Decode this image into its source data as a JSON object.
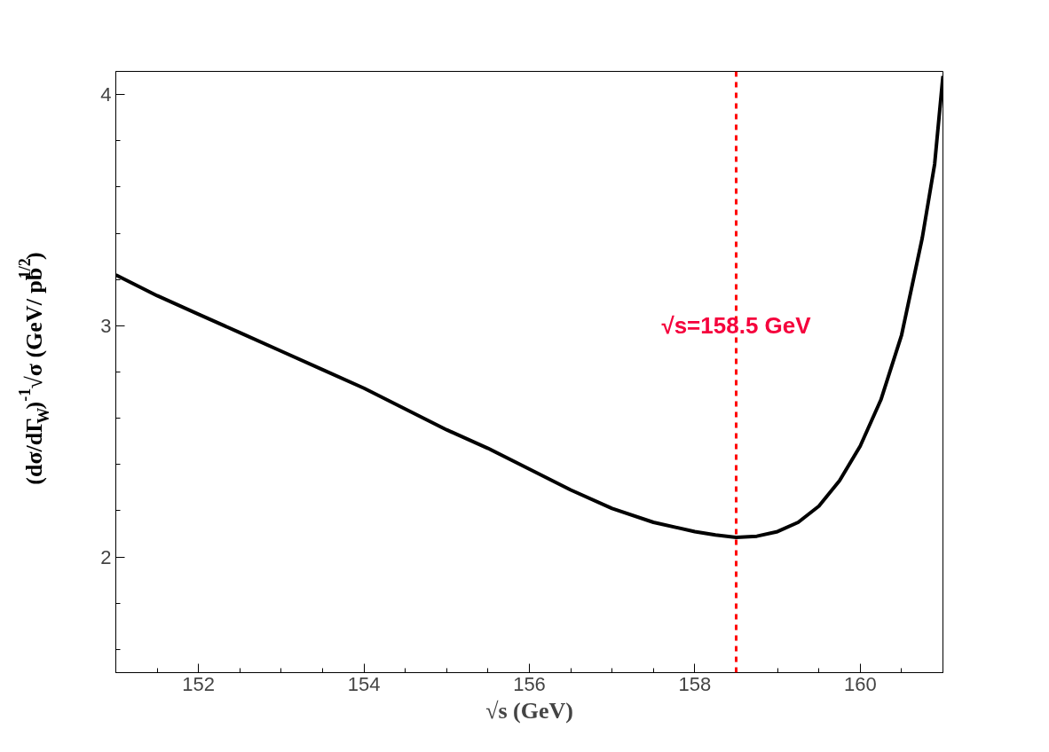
{
  "chart_data": {
    "type": "line",
    "xlabel": "√s (GeV)",
    "ylabel": "(dσ/dΓ$_{W}$)$^{-1}$√σ (GeV/ pb$^{1/2}$)",
    "x": [
      151,
      151.5,
      152,
      152.5,
      153,
      153.5,
      154,
      154.5,
      155,
      155.5,
      156,
      156.5,
      157,
      157.5,
      158,
      158.25,
      158.5,
      158.75,
      159,
      159.25,
      159.5,
      159.75,
      160,
      160.25,
      160.5,
      160.75,
      160.9,
      161
    ],
    "series": [
      {
        "color": "#000000",
        "values": [
          3.22,
          3.13,
          3.05,
          2.97,
          2.89,
          2.81,
          2.73,
          2.64,
          2.55,
          2.47,
          2.38,
          2.29,
          2.21,
          2.15,
          2.11,
          2.095,
          2.085,
          2.09,
          2.11,
          2.15,
          2.22,
          2.33,
          2.48,
          2.68,
          2.96,
          3.38,
          3.7,
          4.08
        ]
      }
    ],
    "xlim": [
      151,
      161
    ],
    "ylim": [
      1.5,
      4.1
    ],
    "xticks": [
      152,
      154,
      156,
      158,
      160
    ],
    "yticks": [
      2,
      3,
      4
    ],
    "ref_lines": [
      {
        "axis": "x",
        "value": 158.5,
        "color": "#ff0000",
        "line_style": "dashed"
      }
    ],
    "annotations": [
      {
        "text": "√s=158.5 GeV",
        "x": 158.5,
        "y": 3.0
      }
    ],
    "grid": false,
    "marker": "none",
    "line_style": "solid"
  }
}
